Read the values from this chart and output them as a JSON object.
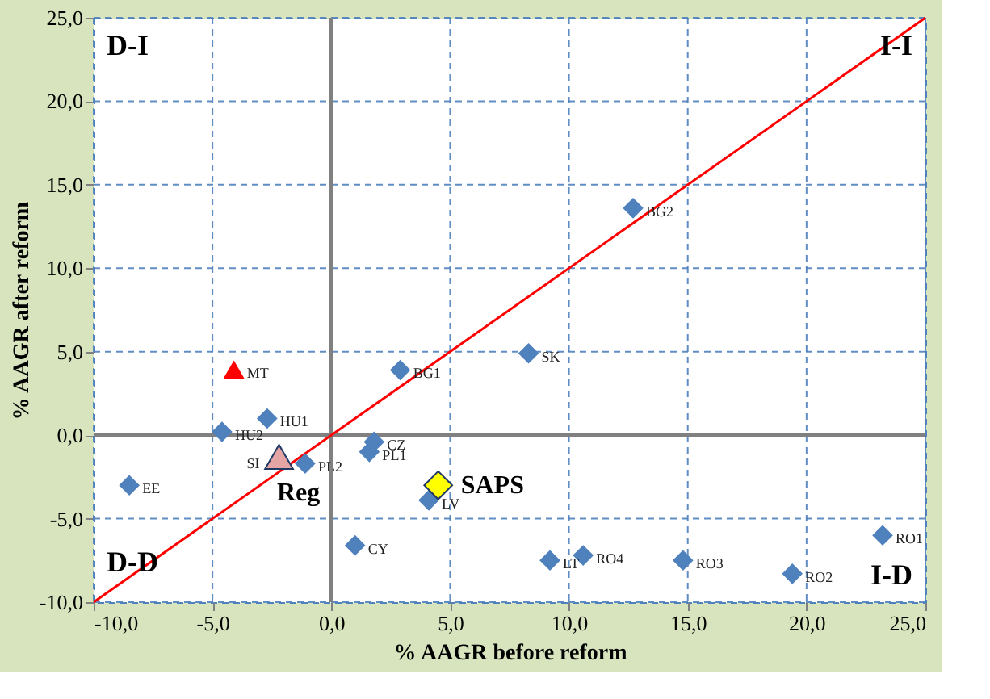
{
  "chart_data": {
    "type": "scatter",
    "xlabel": "% AAGR  before reform",
    "ylabel": "% AAGR  after reform",
    "xlim": [
      -10,
      25
    ],
    "ylim": [
      -10,
      25
    ],
    "xticks": [
      {
        "value": -10,
        "label": "-10,0"
      },
      {
        "value": -5,
        "label": "-5,0"
      },
      {
        "value": 0,
        "label": "0,0"
      },
      {
        "value": 5,
        "label": "5,0"
      },
      {
        "value": 10,
        "label": "10,0"
      },
      {
        "value": 15,
        "label": "15,0"
      },
      {
        "value": 20,
        "label": "20,0"
      },
      {
        "value": 25,
        "label": "25,0"
      }
    ],
    "yticks": [
      {
        "value": -10,
        "label": "-10,0"
      },
      {
        "value": -5,
        "label": "-5,0"
      },
      {
        "value": 0,
        "label": "0,0"
      },
      {
        "value": 5,
        "label": "5,0"
      },
      {
        "value": 10,
        "label": "10,0"
      },
      {
        "value": 15,
        "label": "15,0"
      },
      {
        "value": 20,
        "label": "20,0"
      },
      {
        "value": 25,
        "label": "25,0"
      }
    ],
    "grid": true,
    "annotations": [
      "D-I",
      "I-I",
      "D-D",
      "I-D"
    ],
    "series": [
      {
        "type": "line",
        "color": "#ff0000",
        "marker": "none",
        "x": [
          -10,
          25
        ],
        "values": [
          -10,
          25
        ]
      },
      {
        "color": "#4f81bd",
        "marker": "diamond",
        "x": [
          12.7,
          8.3,
          2.9,
          -2.7,
          -4.6,
          -1.1,
          1.8,
          1.6,
          -8.5,
          4.1,
          1.0,
          9.2,
          10.6,
          14.8,
          19.4,
          23.2
        ],
        "values": [
          13.6,
          4.9,
          3.9,
          1.0,
          0.2,
          -1.7,
          -0.4,
          -1.0,
          -3.0,
          -3.9,
          -6.6,
          -7.5,
          -7.2,
          -7.5,
          -8.3,
          -6.0
        ],
        "value_labels": [
          "BG2",
          "SK",
          "BG1",
          "HU1",
          "HU2",
          "PL2",
          "CZ",
          "PL1",
          "EE",
          "LV",
          "CY",
          "LT",
          "RO4",
          "RO3",
          "RO2",
          "RO1"
        ]
      },
      {
        "type": "scatter",
        "color": "#ff0000",
        "marker": "triangle",
        "x": [
          -4.1
        ],
        "values": [
          3.9
        ],
        "value_labels": [
          "MT"
        ]
      },
      {
        "type": "scatter",
        "name": "Reg",
        "color": "#e6a5a5",
        "marker": "triangle",
        "x": [
          -2.2
        ],
        "values": [
          -1.3
        ],
        "value_labels": [
          "SI"
        ]
      },
      {
        "type": "scatter",
        "name": "SAPS",
        "color": "#ffff00",
        "marker": "diamond",
        "x": [
          4.5
        ],
        "values": [
          -3.0
        ]
      }
    ]
  }
}
